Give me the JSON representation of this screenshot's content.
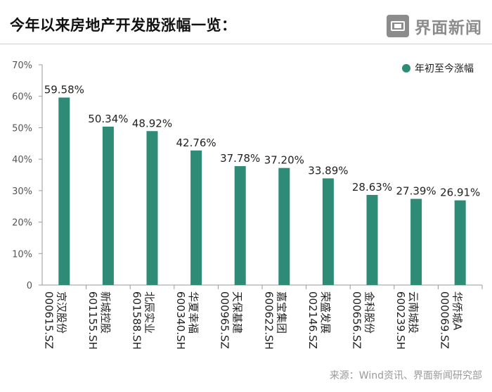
{
  "header": {
    "title": "今年以来房地产开发股涨幅一览：",
    "logo_text": "界面新闻"
  },
  "source": "来源：Wind资讯、界面新闻研究部",
  "colors": {
    "bar": "#2e8b76",
    "axis": "#999999",
    "text": "#222222"
  },
  "chart_data": {
    "type": "bar",
    "title": "今年以来房地产开发股涨幅一览：",
    "categories": [
      {
        "name": "京汉股份",
        "code": "000615.SZ"
      },
      {
        "name": "新城控股",
        "code": "601155.SH"
      },
      {
        "name": "北辰实业",
        "code": "601588.SH"
      },
      {
        "name": "华夏幸福",
        "code": "600340.SH"
      },
      {
        "name": "天保基建",
        "code": "000965.SZ"
      },
      {
        "name": "嘉宝集团",
        "code": "600622.SH"
      },
      {
        "name": "荣盛发展",
        "code": "002146.SZ"
      },
      {
        "name": "金科股份",
        "code": "000656.SZ"
      },
      {
        "name": "云南城投",
        "code": "600239.SH"
      },
      {
        "name": "华侨城A",
        "code": "000069.SZ"
      }
    ],
    "series": [
      {
        "name": "年初至今涨幅",
        "values": [
          59.58,
          50.34,
          48.92,
          42.76,
          37.78,
          37.2,
          33.89,
          28.63,
          27.39,
          26.91
        ],
        "labels": [
          "59.58%",
          "50.34%",
          "48.92%",
          "42.76%",
          "37.78%",
          "37.20%",
          "33.89%",
          "28.63%",
          "27.39%",
          "26.91%"
        ]
      }
    ],
    "ylim": [
      0,
      70
    ],
    "yticks": [
      {
        "value": 0,
        "label": "0"
      },
      {
        "value": 10,
        "label": "10%"
      },
      {
        "value": 20,
        "label": "20%"
      },
      {
        "value": 30,
        "label": "30%"
      },
      {
        "value": 40,
        "label": "40%"
      },
      {
        "value": 50,
        "label": "50%"
      },
      {
        "value": 60,
        "label": "60%"
      },
      {
        "value": 70,
        "label": "70%"
      }
    ],
    "legend": "top-right",
    "grid": false
  }
}
